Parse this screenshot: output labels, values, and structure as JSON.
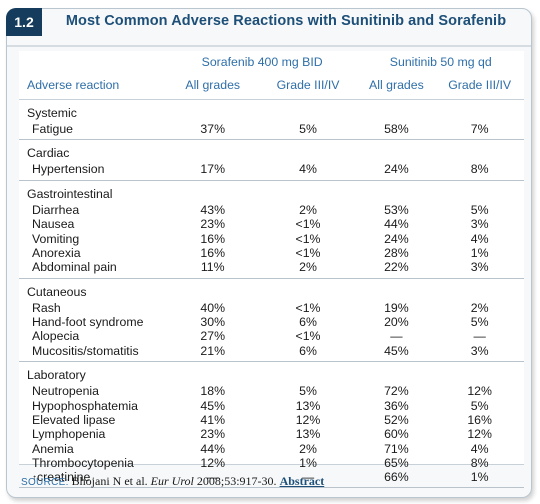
{
  "badge": "1.2",
  "title": "Most Common Adverse Reactions with Sunitinib and Sorafenib",
  "drugs": [
    "Sorafenib 400 mg BID",
    "Sunitinib 50 mg qd"
  ],
  "columns": [
    "Adverse reaction",
    "All grades",
    "Grade III/IV",
    "All grades",
    "Grade III/IV"
  ],
  "groups": {
    "systemic": {
      "name": "Systemic",
      "rows": [
        {
          "label": "Fatigue",
          "v": [
            "37%",
            "5%",
            "58%",
            "7%"
          ]
        }
      ]
    },
    "cardiac": {
      "name": "Cardiac",
      "rows": [
        {
          "label": "Hypertension",
          "v": [
            "17%",
            "4%",
            "24%",
            "8%"
          ]
        }
      ]
    },
    "gastrointestinal": {
      "name": "Gastrointestinal",
      "rows": [
        {
          "label": "Diarrhea",
          "v": [
            "43%",
            "2%",
            "53%",
            "5%"
          ]
        },
        {
          "label": "Nausea",
          "v": [
            "23%",
            "<1%",
            "44%",
            "3%"
          ]
        },
        {
          "label": "Vomiting",
          "v": [
            "16%",
            "<1%",
            "24%",
            "4%"
          ]
        },
        {
          "label": "Anorexia",
          "v": [
            "16%",
            "<1%",
            "28%",
            "1%"
          ]
        },
        {
          "label": "Abdominal pain",
          "v": [
            "11%",
            "2%",
            "22%",
            "3%"
          ]
        }
      ]
    },
    "cutaneous": {
      "name": "Cutaneous",
      "rows": [
        {
          "label": "Rash",
          "v": [
            "40%",
            "<1%",
            "19%",
            "2%"
          ]
        },
        {
          "label": "Hand-foot syndrome",
          "v": [
            "30%",
            "6%",
            "20%",
            "5%"
          ]
        },
        {
          "label": "Alopecia",
          "v": [
            "27%",
            "<1%",
            "—",
            "—"
          ]
        },
        {
          "label": "Mucositis/stomatitis",
          "v": [
            "21%",
            "6%",
            "45%",
            "3%"
          ]
        }
      ]
    },
    "laboratory": {
      "name": "Laboratory",
      "rows": [
        {
          "label": "Neutropenia",
          "v": [
            "18%",
            "5%",
            "72%",
            "12%"
          ]
        },
        {
          "label": "Hypophosphatemia",
          "v": [
            "45%",
            "13%",
            "36%",
            "5%"
          ]
        },
        {
          "label": "Elevated lipase",
          "v": [
            "41%",
            "12%",
            "52%",
            "16%"
          ]
        },
        {
          "label": "Lymphopenia",
          "v": [
            "23%",
            "13%",
            "60%",
            "12%"
          ]
        },
        {
          "label": "Anemia",
          "v": [
            "44%",
            "2%",
            "71%",
            "4%"
          ]
        },
        {
          "label": "Thrombocytopenia",
          "v": [
            "12%",
            "1%",
            "65%",
            "8%"
          ]
        },
        {
          "label": "creatinine",
          "v": [
            "—",
            "—",
            "66%",
            "1%"
          ],
          "icon": "up-arrow-icon"
        }
      ]
    }
  },
  "source": {
    "label": "SOURCE:",
    "pre": "Bhojani N et al.",
    "journal": "Eur Urol",
    "post": "2008;53:917-30.",
    "link": "Abstract"
  },
  "colors": {
    "badge": "#153c5c",
    "title": "#1d4f78",
    "header_text": "#2f6fa8",
    "frame_bg": "#f6f8f9"
  }
}
